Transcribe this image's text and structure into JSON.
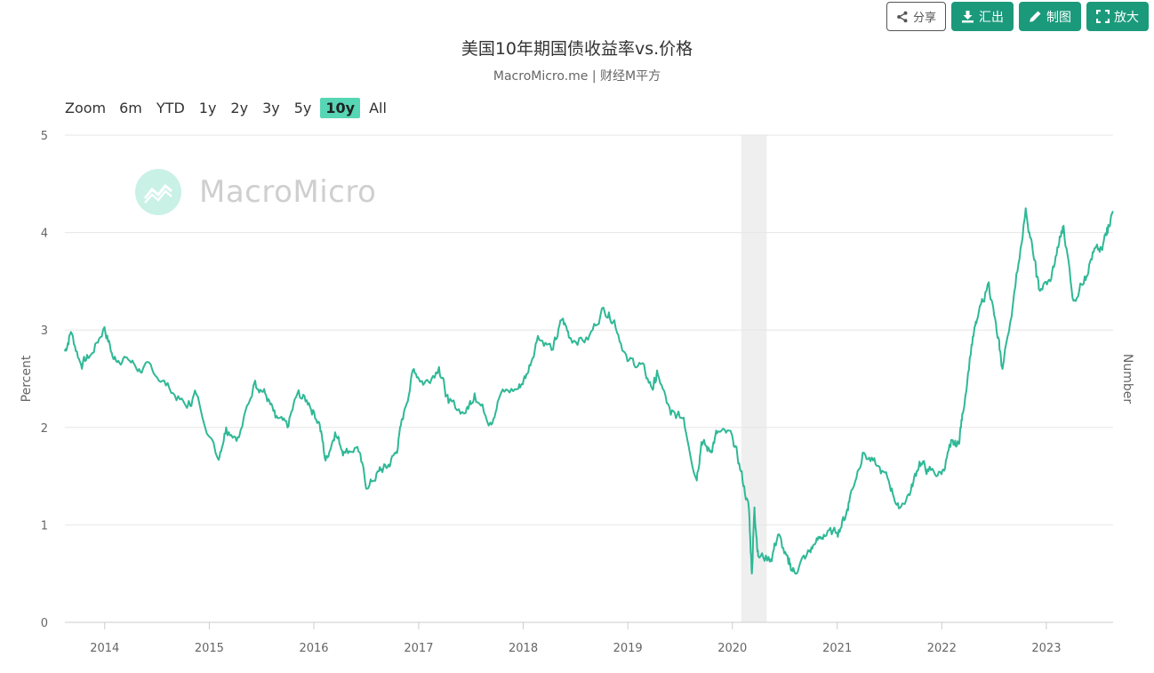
{
  "toolbar": {
    "share_label": "分享",
    "export_label": "汇出",
    "draw_label": "制图",
    "zoom_label": "放大"
  },
  "watermark": {
    "text": "MacroMicro"
  },
  "zoom_controls": {
    "label": "Zoom",
    "options": [
      "6m",
      "YTD",
      "1y",
      "2y",
      "3y",
      "5y",
      "10y",
      "All"
    ],
    "selected": "10y"
  },
  "colors": {
    "line": "#2fb896",
    "recession": "#efefef",
    "accent": "#1b9a7b",
    "selected_zoom": "#56d6b5"
  },
  "chart_data": {
    "type": "line",
    "title": "美国10年期国债收益率vs.价格",
    "subtitle": "MacroMicro.me | 财经M平方",
    "ylabel": "Percent",
    "ylabel_right": "Number",
    "ylim": [
      0,
      5
    ],
    "yticks": [
      "0",
      "1",
      "2",
      "3",
      "4",
      "5"
    ],
    "xlim": [
      "2013-08-15",
      "2023-08-22"
    ],
    "xticks": [
      "2014",
      "2015",
      "2016",
      "2017",
      "2018",
      "2019",
      "2020",
      "2021",
      "2022",
      "2023"
    ],
    "grid": true,
    "recession_band": [
      "2020-02-01",
      "2020-04-30"
    ],
    "series": [
      {
        "x": [
          "2013-08-15",
          "2013-09-05",
          "2013-10-10",
          "2013-11-15",
          "2013-12-31",
          "2014-02-01",
          "2014-03-15",
          "2014-05-01",
          "2014-06-15",
          "2014-08-15",
          "2014-10-15",
          "2014-11-15",
          "2015-01-31",
          "2015-03-01",
          "2015-04-15",
          "2015-06-10",
          "2015-07-15",
          "2015-08-20",
          "2015-10-01",
          "2015-11-05",
          "2015-12-15",
          "2016-01-20",
          "2016-02-11",
          "2016-03-15",
          "2016-04-15",
          "2016-06-01",
          "2016-07-05",
          "2016-08-15",
          "2016-09-15",
          "2016-10-15",
          "2016-11-10",
          "2016-12-15",
          "2017-01-20",
          "2017-03-13",
          "2017-04-15",
          "2017-06-14",
          "2017-07-15",
          "2017-09-08",
          "2017-10-15",
          "2017-12-15",
          "2018-01-15",
          "2018-02-21",
          "2018-04-15",
          "2018-05-17",
          "2018-06-15",
          "2018-08-15",
          "2018-10-08",
          "2018-11-15",
          "2018-12-31",
          "2019-02-15",
          "2019-03-27",
          "2019-04-15",
          "2019-05-31",
          "2019-07-15",
          "2019-08-28",
          "2019-09-15",
          "2019-10-15",
          "2019-11-08",
          "2019-12-31",
          "2020-01-31",
          "2020-02-28",
          "2020-03-09",
          "2020-03-18",
          "2020-03-31",
          "2020-05-15",
          "2020-06-08",
          "2020-07-15",
          "2020-08-04",
          "2020-09-15",
          "2020-10-15",
          "2020-11-15",
          "2020-12-31",
          "2021-01-31",
          "2021-02-15",
          "2021-03-31",
          "2021-05-15",
          "2021-06-30",
          "2021-08-04",
          "2021-09-15",
          "2021-10-15",
          "2021-11-15",
          "2021-12-31",
          "2022-01-31",
          "2022-02-28",
          "2022-03-15",
          "2022-04-15",
          "2022-05-06",
          "2022-06-14",
          "2022-07-15",
          "2022-08-01",
          "2022-09-15",
          "2022-10-21",
          "2022-11-15",
          "2022-12-06",
          "2023-01-15",
          "2023-02-15",
          "2023-03-02",
          "2023-04-06",
          "2023-05-15",
          "2023-06-15",
          "2023-07-15",
          "2023-08-01",
          "2023-08-22"
        ],
        "values": [
          2.78,
          2.98,
          2.65,
          2.75,
          3.03,
          2.7,
          2.72,
          2.6,
          2.6,
          2.4,
          2.2,
          2.35,
          1.68,
          2.0,
          1.9,
          2.48,
          2.35,
          2.1,
          2.0,
          2.35,
          2.25,
          2.05,
          1.66,
          1.95,
          1.75,
          1.8,
          1.37,
          1.55,
          1.6,
          1.75,
          2.15,
          2.6,
          2.45,
          2.62,
          2.25,
          2.15,
          2.35,
          2.05,
          2.35,
          2.4,
          2.55,
          2.94,
          2.8,
          3.11,
          2.92,
          2.9,
          3.23,
          3.1,
          2.68,
          2.65,
          2.4,
          2.55,
          2.13,
          2.1,
          1.47,
          1.85,
          1.75,
          1.94,
          1.92,
          1.55,
          1.15,
          0.5,
          1.18,
          0.68,
          0.65,
          0.9,
          0.6,
          0.52,
          0.68,
          0.8,
          0.9,
          0.92,
          1.1,
          1.3,
          1.74,
          1.62,
          1.45,
          1.17,
          1.35,
          1.65,
          1.55,
          1.52,
          1.8,
          1.83,
          2.14,
          2.85,
          3.12,
          3.49,
          2.92,
          2.6,
          3.45,
          4.25,
          3.8,
          3.42,
          3.5,
          3.9,
          4.07,
          3.3,
          3.55,
          3.8,
          3.82,
          4.05,
          4.22
        ]
      }
    ]
  }
}
